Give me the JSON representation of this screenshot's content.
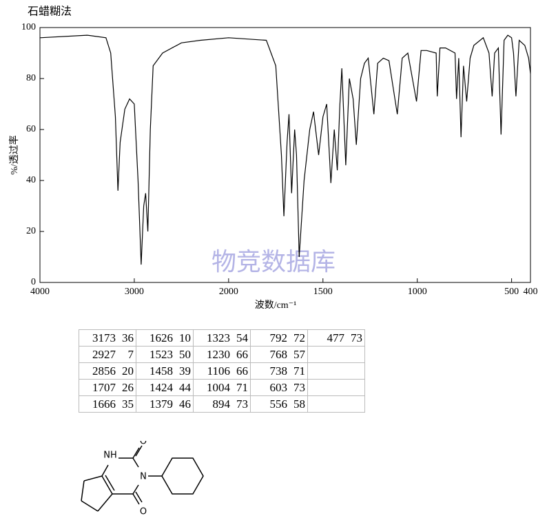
{
  "chart_data": {
    "type": "line",
    "title": "石蜡糊法",
    "watermark": "物竞数据库",
    "y_label": "%/透过率",
    "x_label": "波数/cm⁻¹",
    "color": "#000000",
    "xlim": [
      4000,
      400
    ],
    "xticks": [
      4000,
      3000,
      2000,
      1500,
      1000,
      500,
      400
    ],
    "x_scale_break": 2000,
    "x_scale_factor": 2,
    "ylim": [
      0,
      100
    ],
    "yticks": [
      0,
      20,
      40,
      60,
      80,
      100
    ],
    "x": [
      4000,
      3500,
      3300,
      3250,
      3200,
      3173,
      3150,
      3100,
      3050,
      3000,
      2960,
      2927,
      2900,
      2880,
      2856,
      2830,
      2800,
      2700,
      2500,
      2300,
      2000,
      1800,
      1750,
      1720,
      1707,
      1690,
      1680,
      1666,
      1650,
      1640,
      1626,
      1600,
      1570,
      1550,
      1523,
      1500,
      1480,
      1458,
      1440,
      1424,
      1410,
      1400,
      1379,
      1360,
      1340,
      1323,
      1300,
      1280,
      1260,
      1230,
      1210,
      1180,
      1150,
      1106,
      1080,
      1050,
      1004,
      980,
      950,
      900,
      894,
      880,
      850,
      800,
      792,
      780,
      768,
      755,
      738,
      720,
      700,
      650,
      620,
      603,
      590,
      570,
      556,
      540,
      520,
      500,
      490,
      477,
      460,
      430,
      410,
      400
    ],
    "values": [
      96,
      97,
      96,
      90,
      65,
      36,
      55,
      68,
      72,
      70,
      40,
      7,
      30,
      35,
      20,
      60,
      85,
      90,
      94,
      95,
      96,
      95,
      85,
      50,
      26,
      55,
      66,
      35,
      60,
      50,
      10,
      40,
      60,
      67,
      50,
      65,
      70,
      39,
      60,
      44,
      70,
      84,
      46,
      80,
      72,
      54,
      80,
      86,
      88,
      66,
      86,
      88,
      87,
      66,
      88,
      90,
      71,
      91,
      91,
      90,
      73,
      92,
      92,
      90,
      72,
      88,
      57,
      85,
      71,
      88,
      93,
      96,
      90,
      73,
      90,
      92,
      58,
      95,
      97,
      96,
      90,
      73,
      95,
      93,
      88,
      82
    ]
  },
  "peak_table": {
    "columns": [
      [
        [
          3173,
          36
        ],
        [
          2927,
          7
        ],
        [
          2856,
          20
        ],
        [
          1707,
          26
        ],
        [
          1666,
          35
        ]
      ],
      [
        [
          1626,
          10
        ],
        [
          1523,
          50
        ],
        [
          1458,
          39
        ],
        [
          1424,
          44
        ],
        [
          1379,
          46
        ]
      ],
      [
        [
          1323,
          54
        ],
        [
          1230,
          66
        ],
        [
          1106,
          66
        ],
        [
          1004,
          71
        ],
        [
          894,
          73
        ]
      ],
      [
        [
          792,
          72
        ],
        [
          768,
          57
        ],
        [
          738,
          71
        ],
        [
          603,
          73
        ],
        [
          556,
          58
        ]
      ],
      [
        [
          477,
          73
        ]
      ]
    ]
  },
  "structure": {
    "atoms": [
      "NH",
      "N",
      "O",
      "O"
    ]
  }
}
